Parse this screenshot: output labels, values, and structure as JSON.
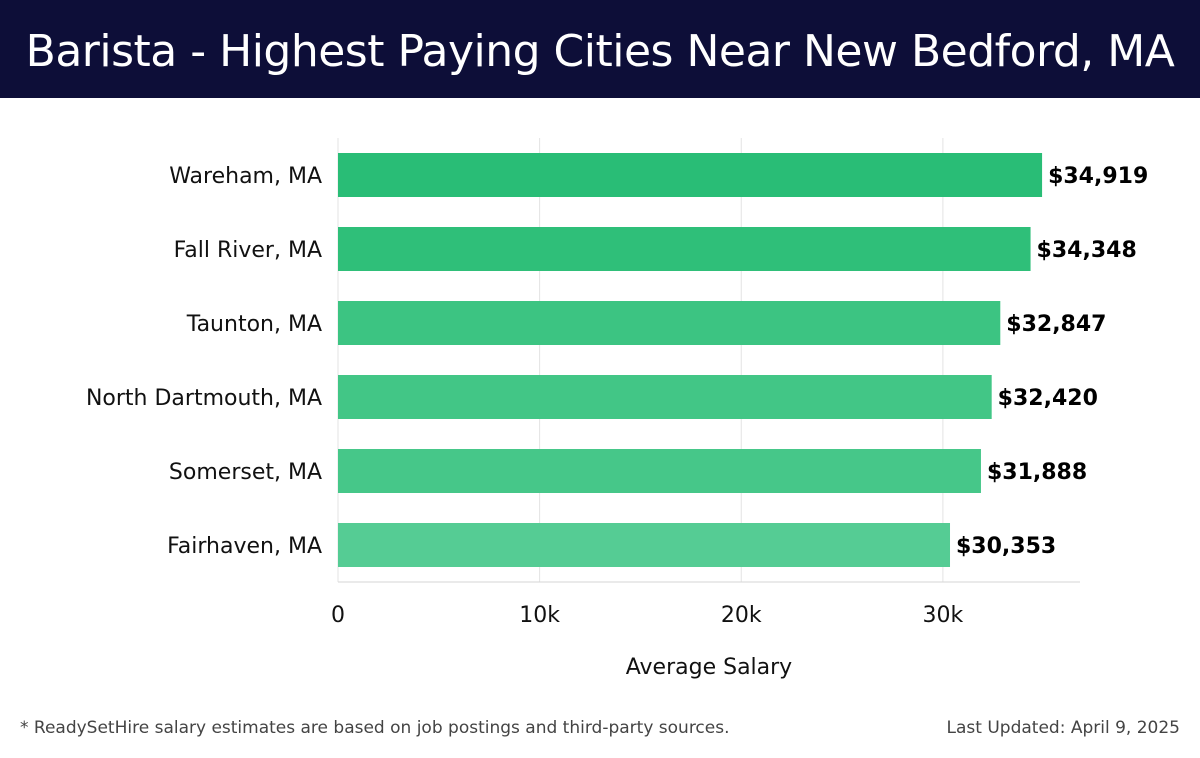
{
  "header": {
    "title": "Barista - Highest Paying Cities Near New Bedford, MA",
    "background_color": "#0d0e38"
  },
  "chart_data": {
    "type": "bar",
    "orientation": "horizontal",
    "title": "Barista - Highest Paying Cities Near New Bedford, MA",
    "categories": [
      "Wareham, MA",
      "Fall River, MA",
      "Taunton, MA",
      "North Dartmouth, MA",
      "Somerset, MA",
      "Fairhaven, MA"
    ],
    "values": [
      34919,
      34348,
      32847,
      32420,
      31888,
      30353
    ],
    "value_labels": [
      "$34,919",
      "$34,348",
      "$32,847",
      "$32,420",
      "$31,888",
      "$30,353"
    ],
    "bar_colors": [
      "#29bd76",
      "#2fbf79",
      "#3cc482",
      "#42c686",
      "#46c789",
      "#55cc94"
    ],
    "xlabel": "Average Salary",
    "ylabel": "",
    "xlim": [
      0,
      36800
    ],
    "xticks": [
      0,
      10000,
      20000,
      30000
    ],
    "xtick_labels": [
      "0",
      "10k",
      "20k",
      "30k"
    ],
    "grid": true
  },
  "footer": {
    "note": "* ReadySetHire salary estimates are based on job postings and third-party sources.",
    "updated": "Last Updated: April 9, 2025"
  }
}
